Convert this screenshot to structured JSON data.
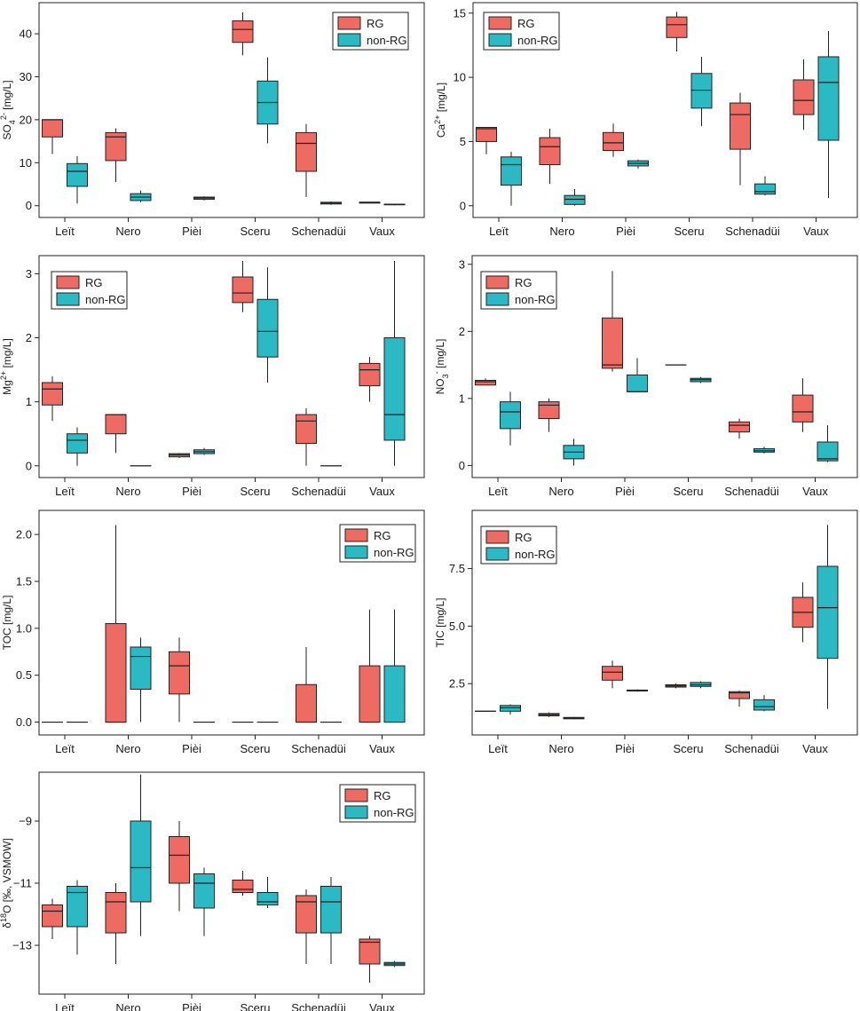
{
  "colors": {
    "RG": "#EE6B64",
    "non-RG": "#2BB9C3"
  },
  "chart_data": [
    {
      "id": "so4",
      "type": "boxplot",
      "ylabel": "SO4 2- [mg/L]",
      "ylabel_parts": [
        "SO",
        "4",
        "2-",
        " [mg/L]"
      ],
      "ylim": [
        -1.5,
        46
      ],
      "yticks": [
        0,
        10,
        20,
        30,
        40
      ],
      "tick_labels": [
        "0",
        "10",
        "20",
        "30",
        "40"
      ],
      "legend": [
        "RG",
        "non-RG"
      ],
      "categories": [
        "Leït",
        "Nero",
        "Pièi",
        "Sceru",
        "Schenadüi",
        "Vaux"
      ],
      "series": [
        {
          "name": "RG",
          "boxes": [
            {
              "min": 12,
              "q1": 16,
              "median": 20,
              "q3": 20,
              "max": 20
            },
            {
              "min": 5.5,
              "q1": 10.5,
              "median": 16,
              "q3": 17,
              "max": 18
            },
            null,
            {
              "min": 35,
              "q1": 38,
              "median": 41,
              "q3": 43,
              "max": 45
            },
            {
              "min": 2,
              "q1": 8,
              "median": 14.5,
              "q3": 17,
              "max": 19
            },
            {
              "min": 0.6,
              "q1": 0.6,
              "median": 0.8,
              "q3": 0.8,
              "max": 0.8
            }
          ]
        },
        {
          "name": "non-RG",
          "boxes": [
            {
              "min": 0.5,
              "q1": 4.5,
              "median": 8,
              "q3": 9.8,
              "max": 11.5
            },
            {
              "min": 0.8,
              "q1": 1.2,
              "median": 2,
              "q3": 2.8,
              "max": 3.5
            },
            {
              "min": 1.2,
              "q1": 1.5,
              "median": 1.8,
              "q3": 2,
              "max": 2.2
            },
            {
              "min": 14.5,
              "q1": 19,
              "median": 24,
              "q3": 29,
              "max": 34.5
            },
            {
              "min": 0.2,
              "q1": 0.4,
              "median": 0.6,
              "q3": 0.8,
              "max": 1
            },
            {
              "min": 0.1,
              "q1": 0.2,
              "median": 0.3,
              "q3": 0.35,
              "max": 0.4
            }
          ]
        }
      ]
    },
    {
      "id": "ca",
      "type": "boxplot",
      "ylabel": "Ca2+ [mg/L]",
      "ylabel_parts": [
        "Ca",
        "",
        "2+",
        " [mg/L]"
      ],
      "ylim": [
        -0.5,
        15.4
      ],
      "yticks": [
        0,
        5,
        10,
        15
      ],
      "tick_labels": [
        "0",
        "5",
        "10",
        "15"
      ],
      "legend": [
        "RG",
        "non-RG"
      ],
      "categories": [
        "Leït",
        "Nero",
        "Pièi",
        "Sceru",
        "Schenadüi",
        "Vaux"
      ],
      "series": [
        {
          "name": "RG",
          "boxes": [
            {
              "min": 4,
              "q1": 5,
              "median": 6,
              "q3": 6.1,
              "max": 6.1
            },
            {
              "min": 1.7,
              "q1": 3.2,
              "median": 4.6,
              "q3": 5.3,
              "max": 6
            },
            {
              "min": 3.8,
              "q1": 4.3,
              "median": 4.9,
              "q3": 5.7,
              "max": 6.4
            },
            {
              "min": 12,
              "q1": 13.1,
              "median": 14.1,
              "q3": 14.7,
              "max": 15.1
            },
            {
              "min": 1.6,
              "q1": 4.4,
              "median": 7.1,
              "q3": 8,
              "max": 8.8
            },
            {
              "min": 5.9,
              "q1": 7.1,
              "median": 8.2,
              "q3": 9.8,
              "max": 11.4
            }
          ]
        },
        {
          "name": "non-RG",
          "boxes": [
            {
              "min": 0,
              "q1": 1.6,
              "median": 3.2,
              "q3": 3.8,
              "max": 4.2
            },
            {
              "min": 0,
              "q1": 0.1,
              "median": 0.5,
              "q3": 0.8,
              "max": 1.3
            },
            {
              "min": 2.9,
              "q1": 3.1,
              "median": 3.3,
              "q3": 3.5,
              "max": 3.6
            },
            {
              "min": 6.2,
              "q1": 7.6,
              "median": 9,
              "q3": 10.3,
              "max": 11.6
            },
            {
              "min": 0.8,
              "q1": 0.9,
              "median": 1.1,
              "q3": 1.7,
              "max": 2.3
            },
            {
              "min": 0.6,
              "q1": 5.1,
              "median": 9.6,
              "q3": 11.6,
              "max": 13.6
            }
          ]
        }
      ]
    },
    {
      "id": "mg",
      "type": "boxplot",
      "ylabel": "Mg2+ [mg/L]",
      "ylabel_parts": [
        "Mg",
        "",
        "2+",
        " [mg/L]"
      ],
      "ylim": [
        -0.1,
        3.2
      ],
      "yticks": [
        0,
        1,
        2,
        3
      ],
      "tick_labels": [
        "0",
        "1",
        "2",
        "3"
      ],
      "legend": [
        "RG",
        "non-RG"
      ],
      "categories": [
        "Leït",
        "Nero",
        "Pièi",
        "Sceru",
        "Schenadüi",
        "Vaux"
      ],
      "series": [
        {
          "name": "RG",
          "boxes": [
            {
              "min": 0.7,
              "q1": 0.95,
              "median": 1.2,
              "q3": 1.3,
              "max": 1.4
            },
            {
              "min": 0.2,
              "q1": 0.5,
              "median": 0.8,
              "q3": 0.8,
              "max": 0.8
            },
            {
              "min": 0.12,
              "q1": 0.14,
              "median": 0.17,
              "q3": 0.19,
              "max": 0.2
            },
            {
              "min": 2.4,
              "q1": 2.55,
              "median": 2.7,
              "q3": 2.95,
              "max": 3.2
            },
            {
              "min": 0,
              "q1": 0.35,
              "median": 0.7,
              "q3": 0.8,
              "max": 0.9
            },
            {
              "min": 1,
              "q1": 1.25,
              "median": 1.5,
              "q3": 1.6,
              "max": 1.7
            }
          ]
        },
        {
          "name": "non-RG",
          "boxes": [
            {
              "min": 0,
              "q1": 0.2,
              "median": 0.4,
              "q3": 0.5,
              "max": 0.6
            },
            {
              "min": 0,
              "q1": 0,
              "median": 0,
              "q3": 0,
              "max": 0
            },
            {
              "min": 0.17,
              "q1": 0.19,
              "median": 0.22,
              "q3": 0.25,
              "max": 0.28
            },
            {
              "min": 1.3,
              "q1": 1.7,
              "median": 2.1,
              "q3": 2.6,
              "max": 3.1
            },
            {
              "min": 0,
              "q1": 0,
              "median": 0,
              "q3": 0,
              "max": 0
            },
            {
              "min": 0,
              "q1": 0.4,
              "median": 0.8,
              "q3": 2,
              "max": 3.2
            }
          ]
        }
      ]
    },
    {
      "id": "no3",
      "type": "boxplot",
      "ylabel": "NO3 - [mg/L]",
      "ylabel_parts": [
        "NO",
        "3",
        "-",
        " [mg/L]"
      ],
      "ylim": [
        -0.1,
        3.05
      ],
      "yticks": [
        0,
        1,
        2,
        3
      ],
      "tick_labels": [
        "0",
        "1",
        "2",
        "3"
      ],
      "legend": [
        "RG",
        "non-RG"
      ],
      "categories": [
        "Leït",
        "Nero",
        "Pièi",
        "Sceru",
        "Schenadüi",
        "Vaux"
      ],
      "series": [
        {
          "name": "RG",
          "boxes": [
            {
              "min": 1.2,
              "q1": 1.2,
              "median": 1.25,
              "q3": 1.27,
              "max": 1.3
            },
            {
              "min": 0.5,
              "q1": 0.7,
              "median": 0.9,
              "q3": 0.95,
              "max": 1
            },
            {
              "min": 1.4,
              "q1": 1.45,
              "median": 1.5,
              "q3": 2.2,
              "max": 2.9
            },
            {
              "min": 1.5,
              "q1": 1.5,
              "median": 1.5,
              "q3": 1.5,
              "max": 1.5
            },
            {
              "min": 0.4,
              "q1": 0.5,
              "median": 0.6,
              "q3": 0.65,
              "max": 0.7
            },
            {
              "min": 0.5,
              "q1": 0.65,
              "median": 0.8,
              "q3": 1.05,
              "max": 1.3
            }
          ]
        },
        {
          "name": "non-RG",
          "boxes": [
            {
              "min": 0.3,
              "q1": 0.55,
              "median": 0.8,
              "q3": 0.95,
              "max": 1.1
            },
            {
              "min": 0,
              "q1": 0.1,
              "median": 0.2,
              "q3": 0.3,
              "max": 0.4
            },
            {
              "min": 1.1,
              "q1": 1.1,
              "median": 1.1,
              "q3": 1.35,
              "max": 1.6
            },
            {
              "min": 1.23,
              "q1": 1.25,
              "median": 1.28,
              "q3": 1.3,
              "max": 1.32
            },
            {
              "min": 0.18,
              "q1": 0.2,
              "median": 0.22,
              "q3": 0.25,
              "max": 0.28
            },
            {
              "min": 0.05,
              "q1": 0.07,
              "median": 0.1,
              "q3": 0.35,
              "max": 0.6
            }
          ]
        }
      ]
    },
    {
      "id": "toc",
      "type": "boxplot",
      "ylabel": "TOC [mg/L]",
      "ylabel_parts": [
        "TOC [mg/L]",
        "",
        "",
        ""
      ],
      "ylim": [
        -0.08,
        2.2
      ],
      "yticks": [
        0,
        0.5,
        1,
        1.5,
        2
      ],
      "tick_labels": [
        "0.0",
        "0.5",
        "1.0",
        "1.5",
        "2.0"
      ],
      "legend": [
        "RG",
        "non-RG"
      ],
      "categories": [
        "Leït",
        "Nero",
        "Pièi",
        "Sceru",
        "Schenadüi",
        "Vaux"
      ],
      "series": [
        {
          "name": "RG",
          "boxes": [
            {
              "min": 0,
              "q1": 0,
              "median": 0,
              "q3": 0,
              "max": 0
            },
            {
              "min": 0,
              "q1": 0,
              "median": 0,
              "q3": 1.05,
              "max": 2.1
            },
            {
              "min": 0,
              "q1": 0.3,
              "median": 0.6,
              "q3": 0.75,
              "max": 0.9
            },
            {
              "min": 0,
              "q1": 0,
              "median": 0,
              "q3": 0,
              "max": 0
            },
            {
              "min": 0,
              "q1": 0,
              "median": 0,
              "q3": 0.4,
              "max": 0.8
            },
            {
              "min": 0,
              "q1": 0,
              "median": 0,
              "q3": 0.6,
              "max": 1.2
            }
          ]
        },
        {
          "name": "non-RG",
          "boxes": [
            {
              "min": 0,
              "q1": 0,
              "median": 0,
              "q3": 0,
              "max": 0
            },
            {
              "min": 0,
              "q1": 0.35,
              "median": 0.7,
              "q3": 0.8,
              "max": 0.9
            },
            {
              "min": 0,
              "q1": 0,
              "median": 0,
              "q3": 0,
              "max": 0
            },
            {
              "min": 0,
              "q1": 0,
              "median": 0,
              "q3": 0,
              "max": 0
            },
            {
              "min": 0,
              "q1": 0,
              "median": 0,
              "q3": 0,
              "max": 0
            },
            {
              "min": 0,
              "q1": 0,
              "median": 0,
              "q3": 0.6,
              "max": 1.2
            }
          ]
        }
      ]
    },
    {
      "id": "tic",
      "type": "boxplot",
      "ylabel": "TIC [mg/L]",
      "ylabel_parts": [
        "TIC [mg/L]",
        "",
        "",
        ""
      ],
      "ylim": [
        0.5,
        9.8
      ],
      "yticks": [
        2.5,
        5,
        7.5
      ],
      "tick_labels": [
        "2.5",
        "5.0",
        "7.5"
      ],
      "legend": [
        "RG",
        "non-RG"
      ],
      "categories": [
        "Leït",
        "Nero",
        "Pièi",
        "Sceru",
        "Schenadüi",
        "Vaux"
      ],
      "series": [
        {
          "name": "RG",
          "boxes": [
            {
              "min": 1.3,
              "q1": 1.3,
              "median": 1.3,
              "q3": 1.3,
              "max": 1.3
            },
            {
              "min": 1.05,
              "q1": 1.1,
              "median": 1.15,
              "q3": 1.2,
              "max": 1.25
            },
            {
              "min": 2.3,
              "q1": 2.65,
              "median": 3,
              "q3": 3.25,
              "max": 3.5
            },
            {
              "min": 2.3,
              "q1": 2.35,
              "median": 2.4,
              "q3": 2.45,
              "max": 2.5
            },
            {
              "min": 1.5,
              "q1": 1.85,
              "median": 2.1,
              "q3": 2.15,
              "max": 2.2
            },
            {
              "min": 4.3,
              "q1": 4.95,
              "median": 5.6,
              "q3": 6.25,
              "max": 6.9
            }
          ]
        },
        {
          "name": "non-RG",
          "boxes": [
            {
              "min": 1.15,
              "q1": 1.3,
              "median": 1.45,
              "q3": 1.55,
              "max": 1.6
            },
            {
              "min": 0.95,
              "q1": 0.97,
              "median": 1,
              "q3": 1.03,
              "max": 1.05
            },
            {
              "min": 2.15,
              "q1": 2.18,
              "median": 2.2,
              "q3": 2.22,
              "max": 2.25
            },
            {
              "min": 2.3,
              "q1": 2.38,
              "median": 2.45,
              "q3": 2.55,
              "max": 2.6
            },
            {
              "min": 1.3,
              "q1": 1.35,
              "median": 1.5,
              "q3": 1.8,
              "max": 2
            },
            {
              "min": 1.4,
              "q1": 3.6,
              "median": 5.8,
              "q3": 7.6,
              "max": 9.4
            }
          ]
        }
      ]
    },
    {
      "id": "d18o",
      "type": "boxplot",
      "ylabel": "δ18O [‰, VSMOW]",
      "ylabel_parts": [
        "δ",
        "",
        "18",
        "O [‰, VSMOW]"
      ],
      "ylim": [
        -14.4,
        -7.6
      ],
      "yticks": [
        -13,
        -11,
        -9
      ],
      "tick_labels": [
        "−13",
        "−11",
        "−9"
      ],
      "legend": [
        "RG",
        "non-RG"
      ],
      "categories": [
        "Leït",
        "Nero",
        "Pièi",
        "Sceru",
        "Schenadüi",
        "Vaux"
      ],
      "series": [
        {
          "name": "RG",
          "boxes": [
            {
              "min": -12.8,
              "q1": -12.4,
              "median": -11.9,
              "q3": -11.7,
              "max": -11.5
            },
            {
              "min": -13.6,
              "q1": -12.6,
              "median": -11.6,
              "q3": -11.3,
              "max": -11
            },
            {
              "min": -11.9,
              "q1": -11,
              "median": -10.1,
              "q3": -9.5,
              "max": -9
            },
            {
              "min": -11.4,
              "q1": -11.3,
              "median": -11.2,
              "q3": -10.9,
              "max": -10.6
            },
            {
              "min": -13.6,
              "q1": -12.6,
              "median": -11.6,
              "q3": -11.4,
              "max": -11.2
            },
            {
              "min": -14.2,
              "q1": -13.6,
              "median": -12.9,
              "q3": -12.8,
              "max": -12.7
            }
          ]
        },
        {
          "name": "non-RG",
          "boxes": [
            {
              "min": -13.3,
              "q1": -12.4,
              "median": -11.3,
              "q3": -11.1,
              "max": -10.9
            },
            {
              "min": -12.7,
              "q1": -11.6,
              "median": -10.5,
              "q3": -9,
              "max": -7.5
            },
            {
              "min": -12.7,
              "q1": -11.8,
              "median": -11,
              "q3": -10.7,
              "max": -10.5
            },
            {
              "min": -11.8,
              "q1": -11.7,
              "median": -11.6,
              "q3": -11.3,
              "max": -10.8
            },
            {
              "min": -13.6,
              "q1": -12.6,
              "median": -11.6,
              "q3": -11.1,
              "max": -10.8
            },
            {
              "min": -13.7,
              "q1": -13.65,
              "median": -13.6,
              "q3": -13.55,
              "max": -13.5
            }
          ]
        }
      ]
    }
  ]
}
